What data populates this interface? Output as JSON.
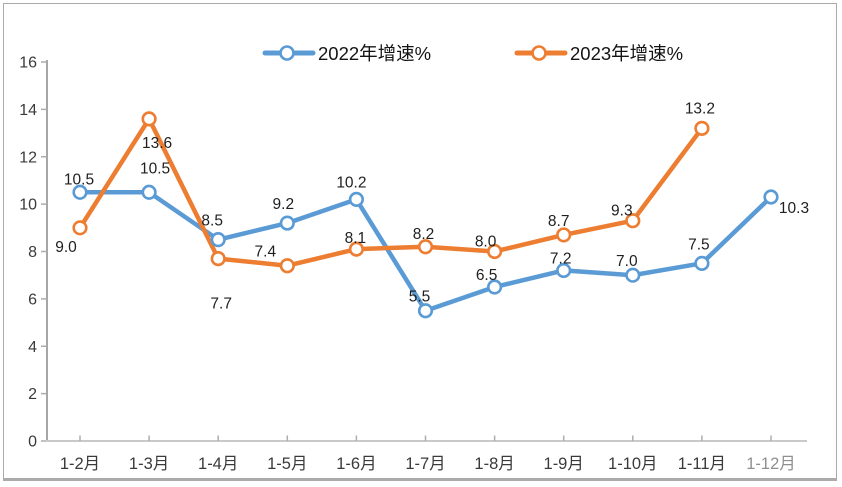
{
  "chart_data": {
    "type": "line",
    "categories": [
      "1-2月",
      "1-3月",
      "1-4月",
      "1-5月",
      "1-6月",
      "1-7月",
      "1-8月",
      "1-9月",
      "1-10月",
      "1-11月",
      "1-12月"
    ],
    "muted_category_index": 10,
    "series": [
      {
        "name": "2022年增速%",
        "color": "#5B9BD5",
        "values": [
          10.5,
          10.5,
          8.5,
          9.2,
          10.2,
          5.5,
          6.5,
          7.2,
          7.0,
          7.5,
          10.3
        ],
        "label_offsets": [
          [
            -1,
            -8
          ],
          [
            6,
            -19
          ],
          [
            -6,
            -14
          ],
          [
            -4,
            -14
          ],
          [
            -5,
            -12
          ],
          [
            -6,
            -9
          ],
          [
            -8,
            -7
          ],
          [
            -3,
            -7
          ],
          [
            -6,
            -9
          ],
          [
            -3,
            -14
          ],
          [
            23,
            16
          ]
        ]
      },
      {
        "name": "2023年增速%",
        "color": "#ED7D31",
        "values": [
          9.0,
          13.6,
          7.7,
          7.4,
          8.1,
          8.2,
          8.0,
          8.7,
          9.3,
          13.2,
          null
        ],
        "label_offsets": [
          [
            -14,
            24
          ],
          [
            8,
            29
          ],
          [
            3,
            50
          ],
          [
            -22,
            -9
          ],
          [
            -1,
            -6
          ],
          [
            -2,
            -8
          ],
          [
            -9,
            -5
          ],
          [
            -5,
            -9
          ],
          [
            -11,
            -5
          ],
          [
            -2,
            -15
          ],
          null
        ]
      }
    ],
    "ylim": [
      0,
      16
    ],
    "ytick_step": 2,
    "yticks": [
      "0",
      "2",
      "4",
      "6",
      "8",
      "10",
      "12",
      "14",
      "16"
    ],
    "grid": false,
    "legend_position": "top",
    "marker": "open-circle",
    "colors": {
      "axis_line": "#A6A6A6",
      "xaxis_line": "#C9C9C9",
      "tick": "#ADADAD",
      "axis_text": "#3A3A3A",
      "muted_axis_text": "#8F8F8F",
      "data_label_text": "#1F1F1F",
      "legend_text": "#141414",
      "frame_border": "#ABABAB"
    }
  }
}
